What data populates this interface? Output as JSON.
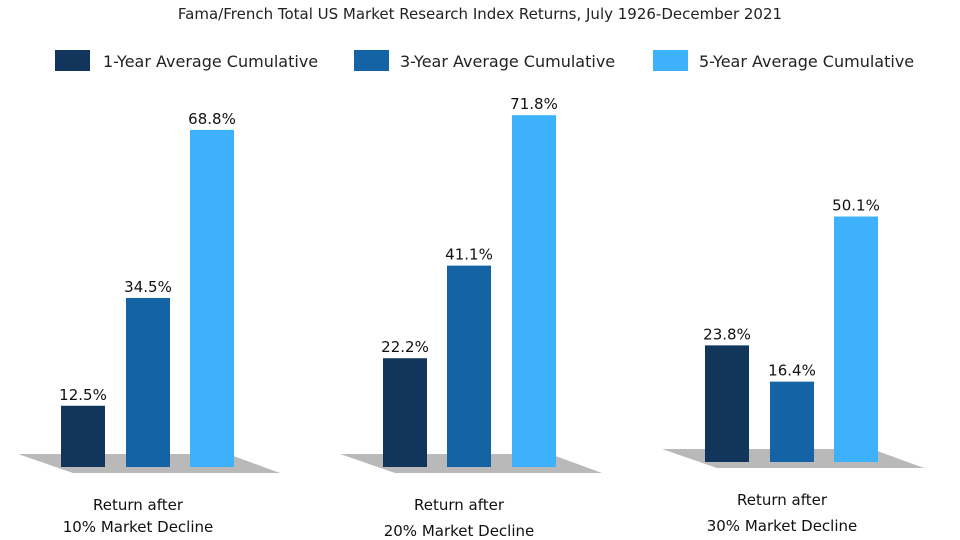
{
  "chart_data": {
    "type": "bar",
    "title": "Fama/French Total US Market Research Index Returns, July 1926-December 2021",
    "xlabel": "",
    "ylabel": "",
    "ylim": [
      0,
      75
    ],
    "grid": false,
    "legend_position": "top",
    "categories": [
      [
        "Return after",
        "10% Market Decline"
      ],
      [
        "Return after",
        "20% Market Decline"
      ],
      [
        "Return after",
        "30% Market Decline"
      ]
    ],
    "series": [
      {
        "name": "1-Year Average Cumulative",
        "color": "#12355b",
        "values": [
          12.5,
          22.2,
          23.8
        ],
        "labels": [
          "12.5%",
          "22.2%",
          "23.8%"
        ]
      },
      {
        "name": "3-Year Average Cumulative",
        "color": "#1464a5",
        "values": [
          34.5,
          41.1,
          16.4
        ],
        "labels": [
          "34.5%",
          "41.1%",
          "16.4%"
        ]
      },
      {
        "name": "5-Year Average Cumulative",
        "color": "#3db1fb",
        "values": [
          68.8,
          71.8,
          50.1
        ],
        "labels": [
          "68.8%",
          "71.8%",
          "50.1%"
        ]
      }
    ],
    "floor_color": "#b9b9b9"
  }
}
